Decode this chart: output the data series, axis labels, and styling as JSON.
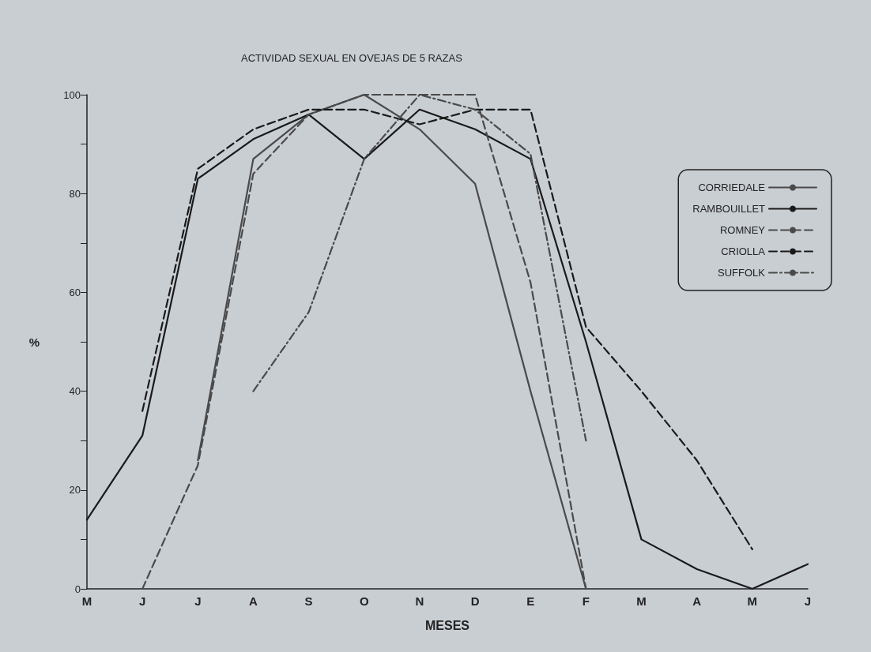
{
  "chart_data": {
    "type": "line",
    "title": "ACTIVIDAD SEXUAL EN OVEJAS DE 5 RAZAS",
    "xlabel": "MESES",
    "ylabel": "%",
    "categories": [
      "M",
      "J",
      "J",
      "A",
      "S",
      "O",
      "N",
      "D",
      "E",
      "F",
      "M",
      "A",
      "M",
      "J"
    ],
    "ylim": [
      0,
      100
    ],
    "yticks": [
      0,
      {
        "value": 10,
        "label": null
      },
      20,
      {
        "value": 30,
        "label": null
      },
      40,
      {
        "value": 50,
        "label": null
      },
      60,
      {
        "value": 70,
        "label": null
      },
      80,
      {
        "value": 90,
        "label": null
      },
      100
    ],
    "grid": false,
    "legend": "right",
    "marker": "none",
    "series": [
      {
        "name": "CORRIEDALE",
        "color": "#4a4a4a",
        "line_style": "solid",
        "values": [
          null,
          null,
          26,
          87,
          96,
          100,
          93,
          82,
          40,
          0,
          null,
          null,
          null,
          null
        ]
      },
      {
        "name": "RAMBOUILLET",
        "color": "#1a1a1a",
        "line_style": "solid",
        "values": [
          14,
          31,
          83,
          91,
          96,
          87,
          97,
          93,
          87,
          50,
          10,
          4,
          0,
          5
        ]
      },
      {
        "name": "ROMNEY",
        "color": "#4a4a4a",
        "line_style": "dashed",
        "values": [
          null,
          0,
          25,
          84,
          96,
          100,
          100,
          100,
          62,
          0,
          null,
          null,
          null,
          null
        ]
      },
      {
        "name": "CRIOLLA",
        "color": "#1a1a1a",
        "line_style": "dashed",
        "values": [
          null,
          36,
          85,
          93,
          97,
          97,
          94,
          97,
          97,
          53,
          40,
          26,
          8,
          null
        ]
      },
      {
        "name": "SUFFOLK",
        "color": "#4a4a4a",
        "line_style": "dashdot",
        "values": [
          null,
          null,
          null,
          40,
          56,
          87,
          100,
          97,
          88,
          30,
          null,
          null,
          null,
          null
        ]
      }
    ]
  }
}
